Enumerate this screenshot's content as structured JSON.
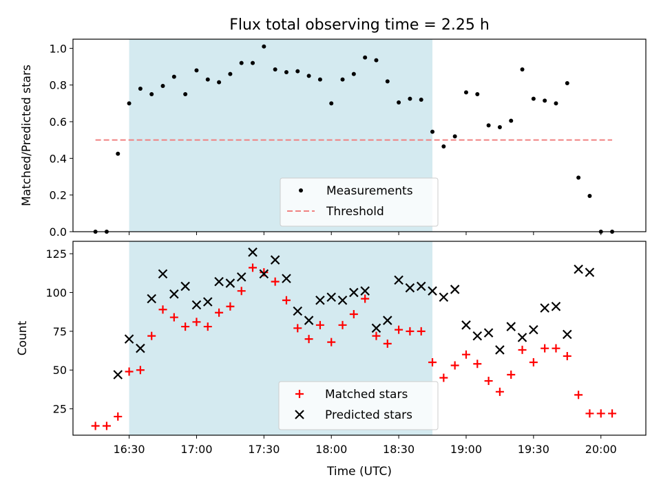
{
  "chart_data": [
    {
      "type": "scatter",
      "title": "Flux total observing time = 2.25 h",
      "xlabel": "",
      "ylabel": "Matched/Predicted stars",
      "xlim": [
        "16:05",
        "20:20"
      ],
      "ylim": [
        0,
        1.05
      ],
      "yticks": [
        "0.0",
        "0.2",
        "0.4",
        "0.6",
        "0.8",
        "1.0"
      ],
      "grid": false,
      "legend_position": "lower center",
      "shaded_interval": {
        "start": "16:30",
        "end": "18:45",
        "color": "#d4eaf0"
      },
      "series": [
        {
          "name": "Measurements",
          "marker": "dot",
          "color": "#000000",
          "points": [
            [
              "16:15",
              0.0
            ],
            [
              "16:20",
              0.0
            ],
            [
              "16:25",
              0.425
            ],
            [
              "16:30",
              0.7
            ],
            [
              "16:35",
              0.78
            ],
            [
              "16:40",
              0.75
            ],
            [
              "16:45",
              0.795
            ],
            [
              "16:50",
              0.845
            ],
            [
              "16:55",
              0.75
            ],
            [
              "17:00",
              0.88
            ],
            [
              "17:05",
              0.83
            ],
            [
              "17:10",
              0.815
            ],
            [
              "17:15",
              0.86
            ],
            [
              "17:20",
              0.92
            ],
            [
              "17:25",
              0.92
            ],
            [
              "17:30",
              1.01
            ],
            [
              "17:35",
              0.885
            ],
            [
              "17:40",
              0.87
            ],
            [
              "17:45",
              0.875
            ],
            [
              "17:50",
              0.85
            ],
            [
              "17:55",
              0.83
            ],
            [
              "18:00",
              0.7
            ],
            [
              "18:05",
              0.83
            ],
            [
              "18:10",
              0.86
            ],
            [
              "18:15",
              0.95
            ],
            [
              "18:20",
              0.935
            ],
            [
              "18:25",
              0.82
            ],
            [
              "18:30",
              0.705
            ],
            [
              "18:35",
              0.725
            ],
            [
              "18:40",
              0.72
            ],
            [
              "18:45",
              0.545
            ],
            [
              "18:50",
              0.465
            ],
            [
              "18:55",
              0.52
            ],
            [
              "19:00",
              0.76
            ],
            [
              "19:05",
              0.75
            ],
            [
              "19:10",
              0.58
            ],
            [
              "19:15",
              0.57
            ],
            [
              "19:20",
              0.605
            ],
            [
              "19:25",
              0.885
            ],
            [
              "19:30",
              0.725
            ],
            [
              "19:35",
              0.715
            ],
            [
              "19:40",
              0.7
            ],
            [
              "19:45",
              0.81
            ],
            [
              "19:50",
              0.295
            ],
            [
              "19:55",
              0.195
            ],
            [
              "20:00",
              0.0
            ],
            [
              "20:05",
              0.0
            ]
          ]
        },
        {
          "name": "Threshold",
          "marker": "dashed-line",
          "color": "#f08080",
          "points": [
            [
              "16:15",
              0.5
            ],
            [
              "20:05",
              0.5
            ]
          ]
        }
      ]
    },
    {
      "type": "scatter",
      "title": "",
      "xlabel": "Time (UTC)",
      "ylabel": "Count",
      "xlim": [
        "16:05",
        "20:20"
      ],
      "ylim": [
        8,
        133
      ],
      "xticks": [
        "16:30",
        "17:00",
        "17:30",
        "18:00",
        "18:30",
        "19:00",
        "19:30",
        "20:00"
      ],
      "yticks": [
        "25",
        "50",
        "75",
        "100",
        "125"
      ],
      "grid": false,
      "legend_position": "lower center",
      "shaded_interval": {
        "start": "16:30",
        "end": "18:45",
        "color": "#d4eaf0"
      },
      "series": [
        {
          "name": "Matched stars",
          "marker": "plus",
          "color": "#ff0000",
          "points": [
            [
              "16:15",
              14
            ],
            [
              "16:20",
              14
            ],
            [
              "16:25",
              20
            ],
            [
              "16:30",
              49
            ],
            [
              "16:35",
              50
            ],
            [
              "16:40",
              72
            ],
            [
              "16:45",
              89
            ],
            [
              "16:50",
              84
            ],
            [
              "16:55",
              78
            ],
            [
              "17:00",
              81
            ],
            [
              "17:05",
              78
            ],
            [
              "17:10",
              87
            ],
            [
              "17:15",
              91
            ],
            [
              "17:20",
              101
            ],
            [
              "17:25",
              116
            ],
            [
              "17:30",
              113
            ],
            [
              "17:35",
              107
            ],
            [
              "17:40",
              95
            ],
            [
              "17:45",
              77
            ],
            [
              "17:50",
              70
            ],
            [
              "17:55",
              79
            ],
            [
              "18:00",
              68
            ],
            [
              "18:05",
              79
            ],
            [
              "18:10",
              86
            ],
            [
              "18:15",
              96
            ],
            [
              "18:20",
              72
            ],
            [
              "18:25",
              67
            ],
            [
              "18:30",
              76
            ],
            [
              "18:35",
              75
            ],
            [
              "18:40",
              75
            ],
            [
              "18:45",
              55
            ],
            [
              "18:50",
              45
            ],
            [
              "18:55",
              53
            ],
            [
              "19:00",
              60
            ],
            [
              "19:05",
              54
            ],
            [
              "19:10",
              43
            ],
            [
              "19:15",
              36
            ],
            [
              "19:20",
              47
            ],
            [
              "19:25",
              63
            ],
            [
              "19:30",
              55
            ],
            [
              "19:35",
              64
            ],
            [
              "19:40",
              64
            ],
            [
              "19:45",
              59
            ],
            [
              "19:50",
              34
            ],
            [
              "19:55",
              22
            ],
            [
              "20:00",
              22
            ],
            [
              "20:05",
              22
            ]
          ]
        },
        {
          "name": "Predicted stars",
          "marker": "x",
          "color": "#000000",
          "points": [
            [
              "16:25",
              47
            ],
            [
              "16:30",
              70
            ],
            [
              "16:35",
              64
            ],
            [
              "16:40",
              96
            ],
            [
              "16:45",
              112
            ],
            [
              "16:50",
              99
            ],
            [
              "16:55",
              104
            ],
            [
              "17:00",
              92
            ],
            [
              "17:05",
              94
            ],
            [
              "17:10",
              107
            ],
            [
              "17:15",
              106
            ],
            [
              "17:20",
              110
            ],
            [
              "17:25",
              126
            ],
            [
              "17:30",
              112
            ],
            [
              "17:35",
              121
            ],
            [
              "17:40",
              109
            ],
            [
              "17:45",
              88
            ],
            [
              "17:50",
              82
            ],
            [
              "17:55",
              95
            ],
            [
              "18:00",
              97
            ],
            [
              "18:05",
              95
            ],
            [
              "18:10",
              100
            ],
            [
              "18:15",
              101
            ],
            [
              "18:20",
              77
            ],
            [
              "18:25",
              82
            ],
            [
              "18:30",
              108
            ],
            [
              "18:35",
              103
            ],
            [
              "18:40",
              104
            ],
            [
              "18:45",
              101
            ],
            [
              "18:50",
              97
            ],
            [
              "18:55",
              102
            ],
            [
              "19:00",
              79
            ],
            [
              "19:05",
              72
            ],
            [
              "19:10",
              74
            ],
            [
              "19:15",
              63
            ],
            [
              "19:20",
              78
            ],
            [
              "19:25",
              71
            ],
            [
              "19:30",
              76
            ],
            [
              "19:35",
              90
            ],
            [
              "19:40",
              91
            ],
            [
              "19:45",
              73
            ],
            [
              "19:50",
              115
            ],
            [
              "19:55",
              113
            ]
          ]
        }
      ]
    }
  ]
}
